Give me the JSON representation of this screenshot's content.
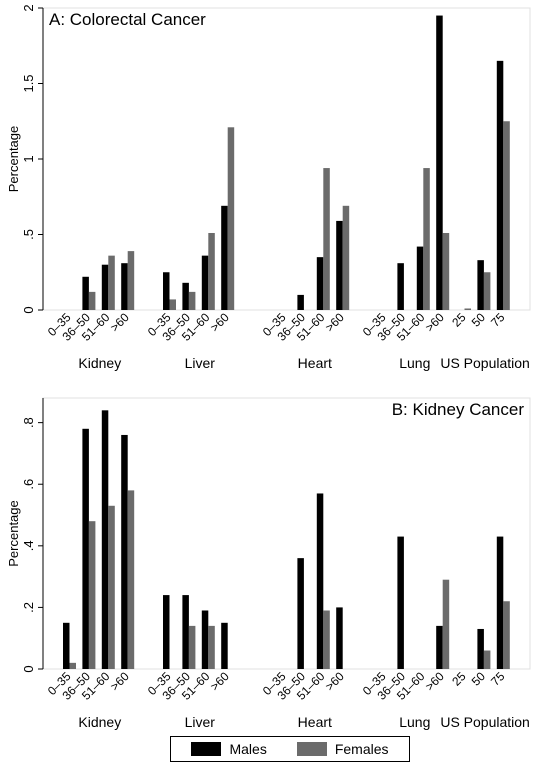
{
  "colors": {
    "males": "#000000",
    "females": "#6b6b6b"
  },
  "legend": {
    "males": "Males",
    "females": "Females",
    "placement": "bottom"
  },
  "chart_data": [
    {
      "type": "bar",
      "title": "A: Colorectal Cancer",
      "ylabel": "Percentage",
      "ylim": [
        0,
        2
      ],
      "yticks": [
        {
          "v": 0,
          "label": "0"
        },
        {
          "v": 0.5,
          "label": ".5"
        },
        {
          "v": 1,
          "label": "1"
        },
        {
          "v": 1.5,
          "label": "1.5"
        },
        {
          "v": 2,
          "label": "2"
        }
      ],
      "groups": [
        {
          "name": "Kidney",
          "categories": [
            "0–35",
            "36–50",
            "51–60",
            ">60"
          ],
          "males": [
            0,
            0.22,
            0.3,
            0.31
          ],
          "females": [
            0,
            0.12,
            0.36,
            0.39
          ]
        },
        {
          "name": "Liver",
          "categories": [
            "0–35",
            "36–50",
            "51–60",
            ">60"
          ],
          "males": [
            0.25,
            0.18,
            0.36,
            0.69
          ],
          "females": [
            0.07,
            0.12,
            0.51,
            1.21
          ]
        },
        {
          "name": "Heart",
          "categories": [
            "0–35",
            "36–50",
            "51–60",
            ">60"
          ],
          "males": [
            0,
            0.1,
            0.35,
            0.59
          ],
          "females": [
            0,
            0,
            0.94,
            0.69
          ]
        },
        {
          "name": "Lung",
          "categories": [
            "0–35",
            "36–50",
            "51–60",
            ">60"
          ],
          "males": [
            0,
            0.31,
            0.42,
            1.95
          ],
          "females": [
            0,
            0,
            0.94,
            0.51
          ]
        },
        {
          "name": "US Population",
          "categories": [
            "25",
            "50",
            "75"
          ],
          "males": [
            0,
            0.33,
            1.65
          ],
          "females": [
            0.01,
            0.25,
            1.25
          ]
        }
      ]
    },
    {
      "type": "bar",
      "title": "B: Kidney Cancer",
      "ylabel": "Percentage",
      "ylim": [
        0,
        0.88
      ],
      "yticks": [
        {
          "v": 0,
          "label": "0"
        },
        {
          "v": 0.2,
          "label": ".2"
        },
        {
          "v": 0.4,
          "label": ".4"
        },
        {
          "v": 0.6,
          "label": ".6"
        },
        {
          "v": 0.8,
          "label": ".8"
        }
      ],
      "groups": [
        {
          "name": "Kidney",
          "categories": [
            "0–35",
            "36–50",
            "51–60",
            ">60"
          ],
          "males": [
            0.15,
            0.78,
            0.84,
            0.76
          ],
          "females": [
            0.02,
            0.48,
            0.53,
            0.58
          ]
        },
        {
          "name": "Liver",
          "categories": [
            "0–35",
            "36–50",
            "51–60",
            ">60"
          ],
          "males": [
            0.24,
            0.24,
            0.19,
            0.15
          ],
          "females": [
            0,
            0.14,
            0.14,
            0
          ]
        },
        {
          "name": "Heart",
          "categories": [
            "0–35",
            "36–50",
            "51–60",
            ">60"
          ],
          "males": [
            0,
            0.36,
            0.57,
            0.2
          ],
          "females": [
            0,
            0,
            0.19,
            0
          ]
        },
        {
          "name": "Lung",
          "categories": [
            "0–35",
            "36–50",
            "51–60",
            ">60"
          ],
          "males": [
            0,
            0.43,
            0,
            0.14
          ],
          "females": [
            0,
            0,
            0,
            0.29
          ]
        },
        {
          "name": "US Population",
          "categories": [
            "25",
            "50",
            "75"
          ],
          "males": [
            0,
            0.13,
            0.43
          ],
          "females": [
            0,
            0.06,
            0.22
          ]
        }
      ]
    }
  ]
}
